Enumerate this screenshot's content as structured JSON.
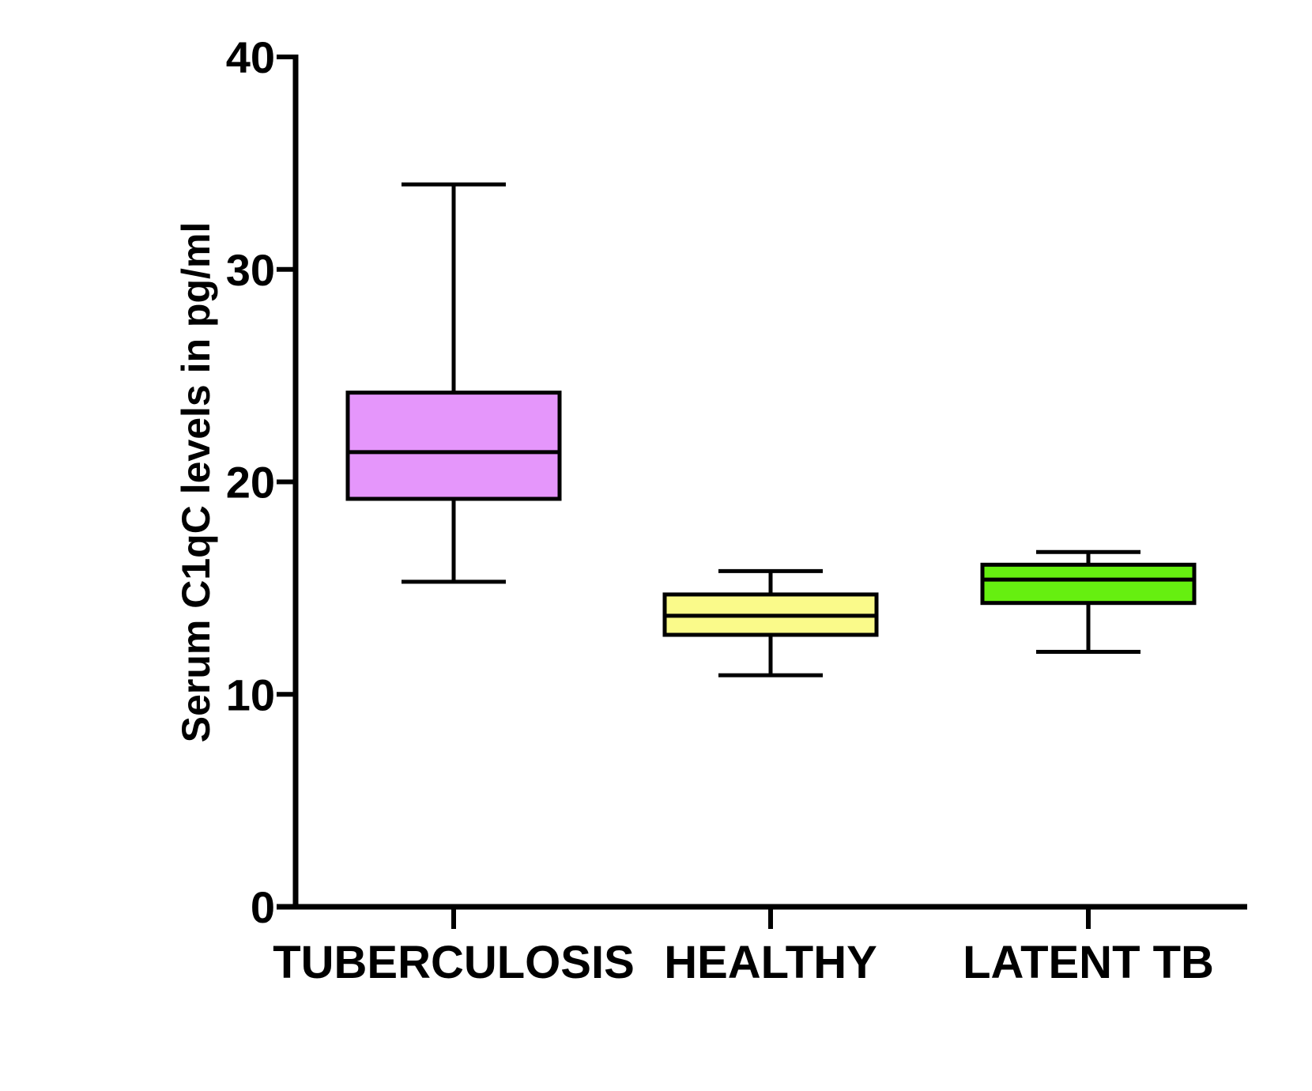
{
  "chart_data": {
    "type": "box",
    "title": "",
    "xlabel": "",
    "ylabel": "Serum C1qC levels in pg/ml",
    "ylim": [
      0,
      40
    ],
    "yticks": [
      0,
      10,
      20,
      30,
      40
    ],
    "categories": [
      "TUBERCULOSIS",
      "HEALTHY",
      "LATENT TB"
    ],
    "boxes": [
      {
        "category": "TUBERCULOSIS",
        "min": 15.3,
        "q1": 19.2,
        "median": 21.4,
        "q3": 24.2,
        "max": 34.0,
        "color": "#e596fb"
      },
      {
        "category": "HEALTHY",
        "min": 10.9,
        "q1": 12.8,
        "median": 13.7,
        "q3": 14.7,
        "max": 15.8,
        "color": "#fafa8a"
      },
      {
        "category": "LATENT TB",
        "min": 12.0,
        "q1": 14.3,
        "median": 15.4,
        "q3": 16.1,
        "max": 16.7,
        "color": "#66ef10"
      }
    ],
    "grid": false,
    "legend": "none"
  }
}
